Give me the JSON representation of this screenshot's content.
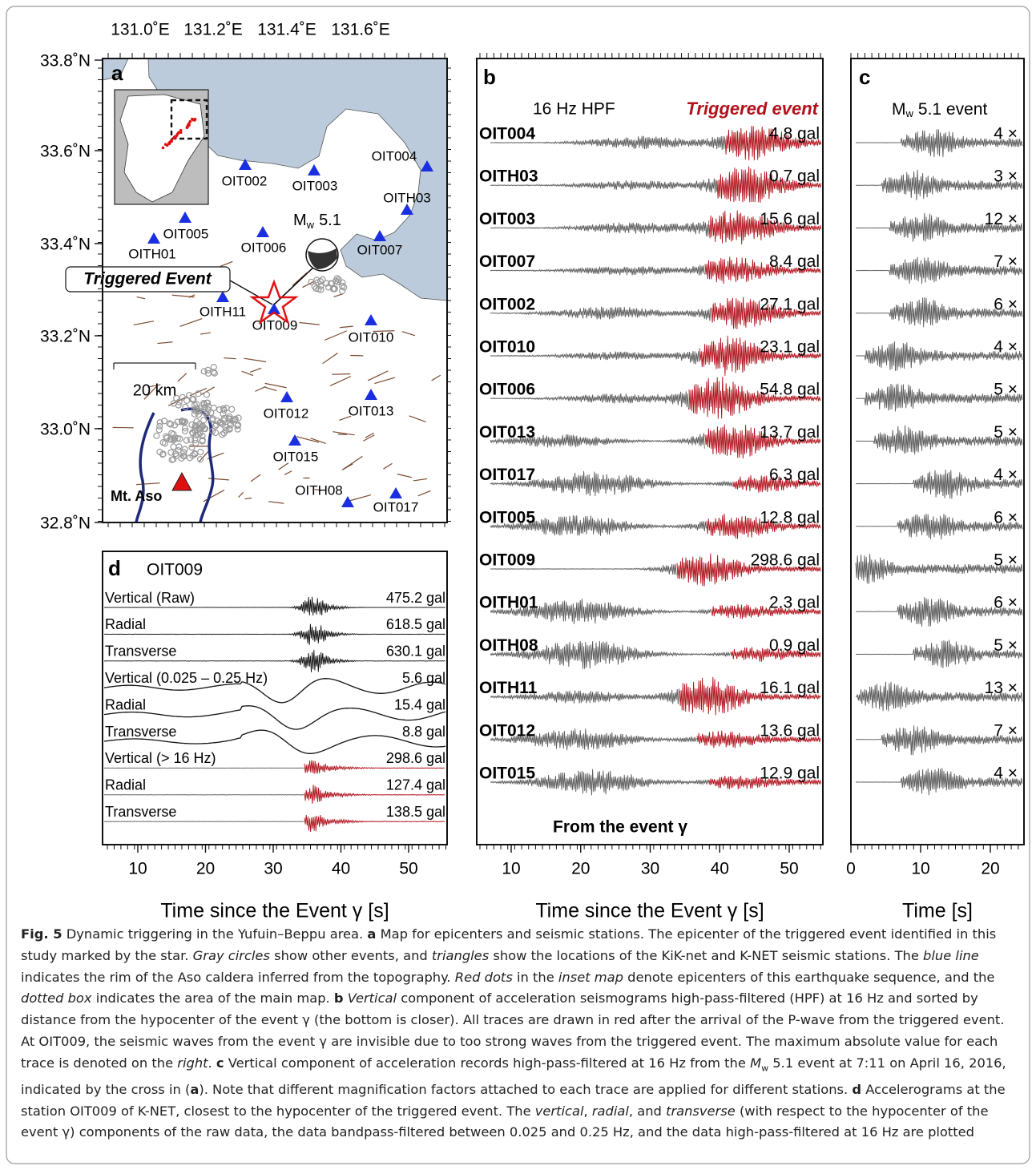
{
  "figure": {
    "panel_a": {
      "label": "a",
      "lon_labels": [
        "131.0˚E",
        "131.2˚E",
        "131.4˚E",
        "131.6˚E"
      ],
      "lat_labels": [
        "33.8˚N",
        "33.6˚N",
        "33.4˚N",
        "33.2˚N",
        "33.0˚N",
        "32.8˚N"
      ],
      "stations": [
        "OIT004",
        "OITH03",
        "OIT003",
        "OIT002",
        "OIT005",
        "OITH01",
        "OIT006",
        "OIT007",
        "OITH11",
        "OIT009",
        "OIT010",
        "OIT012",
        "OIT013",
        "OIT015",
        "OITH08",
        "OIT017"
      ],
      "event_label": "Triggered Event",
      "mw_symbol": "M",
      "mw_subscript": "w",
      "mw_value": "5.1",
      "scale_label": "20 km",
      "volcano": "Mt. Aso"
    },
    "panel_b": {
      "label": "b",
      "filter": "16 Hz HPF",
      "event": "Triggered event",
      "traces": [
        {
          "station": "OIT004",
          "max": "4.8 gal"
        },
        {
          "station": "OITH03",
          "max": "0.7 gal"
        },
        {
          "station": "OIT003",
          "max": "15.6 gal"
        },
        {
          "station": "OIT007",
          "max": "8.4 gal"
        },
        {
          "station": "OIT002",
          "max": "27.1 gal"
        },
        {
          "station": "OIT010",
          "max": "23.1 gal"
        },
        {
          "station": "OIT006",
          "max": "54.8 gal"
        },
        {
          "station": "OIT013",
          "max": "13.7 gal"
        },
        {
          "station": "OIT017",
          "max": "6.3 gal"
        },
        {
          "station": "OIT005",
          "max": "12.8 gal"
        },
        {
          "station": "OIT009",
          "max": "298.6 gal"
        },
        {
          "station": "OITH01",
          "max": "2.3 gal"
        },
        {
          "station": "OITH08",
          "max": "0.9 gal"
        },
        {
          "station": "OITH11",
          "max": "16.1 gal"
        },
        {
          "station": "OIT012",
          "max": "13.6 gal"
        },
        {
          "station": "OIT015",
          "max": "12.9 gal"
        }
      ],
      "footer": "From the event γ",
      "xticks": [
        10,
        20,
        30,
        40,
        50
      ],
      "xlabel": "Time since the Event γ [s]"
    },
    "panel_c": {
      "label": "c",
      "title_symbol": "M",
      "title_subscript": "w",
      "title_rest": "5.1 event",
      "factors": [
        "4 ×",
        "3 ×",
        "12 ×",
        "7 ×",
        "6 ×",
        "4 ×",
        "5 ×",
        "5 ×",
        "4 ×",
        "6 ×",
        "5 ×",
        "6 ×",
        "5 ×",
        "13 ×",
        "7 ×",
        "4 ×"
      ],
      "xticks": [
        0,
        10,
        20
      ],
      "xlabel": "Time [s]"
    },
    "panel_d": {
      "label": "d",
      "station": "OIT009",
      "traces": [
        {
          "component": "Vertical (Raw)",
          "max": "475.2 gal"
        },
        {
          "component": "Radial",
          "max": "618.5 gal"
        },
        {
          "component": "Transverse",
          "max": "630.1 gal"
        },
        {
          "component": "Vertical (0.025 – 0.25 Hz)",
          "max": "5.6 gal"
        },
        {
          "component": "Radial",
          "max": "15.4 gal"
        },
        {
          "component": "Transverse",
          "max": "8.8 gal"
        },
        {
          "component": "Vertical (> 16 Hz)",
          "max": "298.6 gal"
        },
        {
          "component": "Radial",
          "max": "127.4 gal"
        },
        {
          "component": "Transverse",
          "max": "138.5 gal"
        }
      ],
      "xticks": [
        10,
        20,
        30,
        40,
        50
      ],
      "xlabel": "Time since the Event γ [s]"
    },
    "caption": [
      {
        "text": "Fig. 5",
        "style": "bold"
      },
      {
        "text": "  Dynamic triggering in the Yufuin–Beppu area. ",
        "style": "normal"
      },
      {
        "text": "a",
        "style": "bold"
      },
      {
        "text": " Map for epicenters and seismic stations. The epicenter of the triggered event identified in this study marked by the star. ",
        "style": "normal"
      },
      {
        "text": "Gray circles",
        "style": "italic"
      },
      {
        "text": " show other events, and ",
        "style": "normal"
      },
      {
        "text": "triangles",
        "style": "italic"
      },
      {
        "text": " show the locations of the KiK-net and K-NET seismic stations. The ",
        "style": "normal"
      },
      {
        "text": "blue line",
        "style": "italic"
      },
      {
        "text": " indicates the rim of the Aso caldera inferred from the topography. ",
        "style": "normal"
      },
      {
        "text": "Red dots",
        "style": "italic"
      },
      {
        "text": " in the ",
        "style": "normal"
      },
      {
        "text": "inset map",
        "style": "italic"
      },
      {
        "text": " denote epicenters of this earthquake sequence, and the ",
        "style": "normal"
      },
      {
        "text": "dotted box",
        "style": "italic"
      },
      {
        "text": " indicates the area of the main map. ",
        "style": "normal"
      },
      {
        "text": "b",
        "style": "bold"
      },
      {
        "text": " ",
        "style": "normal"
      },
      {
        "text": "Vertical",
        "style": "italic"
      },
      {
        "text": " component of acceleration seismograms high-pass-filtered (HPF) at 16 Hz and sorted by distance from the hypocenter of the event γ (the bottom is closer). All traces are drawn in red after the arrival of the P-wave from the triggered event. At OIT009, the seismic waves from the event γ are invisible due to too strong waves from the triggered event. The maximum absolute value for each trace is denoted on the ",
        "style": "normal"
      },
      {
        "text": "right",
        "style": "italic"
      },
      {
        "text": ". ",
        "style": "normal"
      },
      {
        "text": "c",
        "style": "bold"
      },
      {
        "text": " Vertical component of acceleration records high-pass-filtered at 16 Hz from the ",
        "style": "normal"
      },
      {
        "text": "M",
        "style": "italic"
      },
      {
        "text": "w",
        "style": "sub"
      },
      {
        "text": " 5.1 event at 7:11 on April 16, 2016, indicated by the cross in (",
        "style": "normal"
      },
      {
        "text": "a",
        "style": "bold"
      },
      {
        "text": "). Note that different magnification factors attached to each trace are applied for different stations. ",
        "style": "normal"
      },
      {
        "text": "d",
        "style": "bold"
      },
      {
        "text": " Accelerograms at the station OIT009 of K-NET, closest to the hypocenter of the triggered event. The ",
        "style": "normal"
      },
      {
        "text": "vertical",
        "style": "italic"
      },
      {
        "text": ", ",
        "style": "normal"
      },
      {
        "text": "radial",
        "style": "italic"
      },
      {
        "text": ", and ",
        "style": "normal"
      },
      {
        "text": "transverse",
        "style": "italic"
      },
      {
        "text": " (with respect to the hypocenter of the event γ) components of the raw data, the data bandpass-filtered between 0.025 and 0.25 Hz, and the data high-pass-filtered at 16 Hz are plotted",
        "style": "normal"
      }
    ]
  }
}
